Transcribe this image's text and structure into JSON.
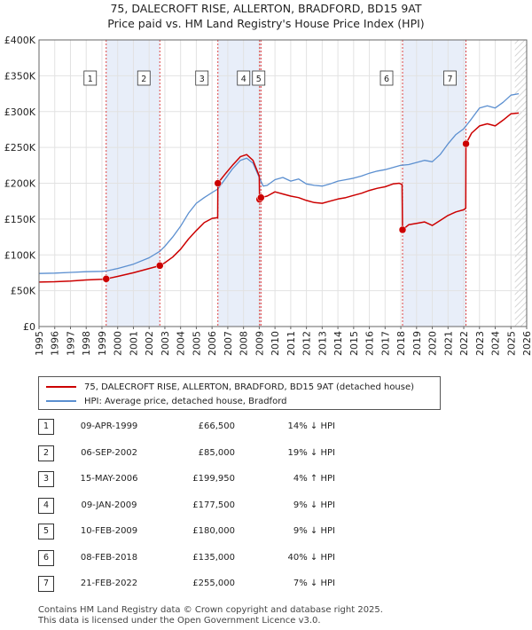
{
  "title_line1": "75, DALECROFT RISE, ALLERTON, BRADFORD, BD15 9AT",
  "title_line2": "Price paid vs. HM Land Registry's House Price Index (HPI)",
  "chart_data": {
    "type": "line",
    "title": "75, DALECROFT RISE, ALLERTON, BRADFORD, BD15 9AT — Price paid vs. HM Land Registry's House Price Index (HPI)",
    "xlim": [
      1995,
      2026
    ],
    "ylim": [
      0,
      400000
    ],
    "x_ticks": [
      "1995",
      "1996",
      "1997",
      "1998",
      "1999",
      "2000",
      "2001",
      "2002",
      "2003",
      "2004",
      "2005",
      "2006",
      "2007",
      "2008",
      "2009",
      "2010",
      "2011",
      "2012",
      "2013",
      "2014",
      "2015",
      "2016",
      "2017",
      "2018",
      "2019",
      "2020",
      "2021",
      "2022",
      "2023",
      "2024",
      "2025",
      "2026"
    ],
    "y_ticks": [
      {
        "value": 0,
        "label": "£0"
      },
      {
        "value": 50000,
        "label": "£50K"
      },
      {
        "value": 100000,
        "label": "£100K"
      },
      {
        "value": 150000,
        "label": "£150K"
      },
      {
        "value": 200000,
        "label": "£200K"
      },
      {
        "value": 250000,
        "label": "£250K"
      },
      {
        "value": 300000,
        "label": "£300K"
      },
      {
        "value": 350000,
        "label": "£350K"
      },
      {
        "value": 400000,
        "label": "£400K"
      }
    ],
    "grid": true,
    "forecast_from": 2025.25,
    "series": [
      {
        "name": "HPI: Average price, detached house, Bradford",
        "color": "#5b8fd0",
        "points": [
          [
            1995.0,
            74000
          ],
          [
            1996.0,
            74500
          ],
          [
            1997.0,
            75500
          ],
          [
            1998.0,
            76500
          ],
          [
            1999.0,
            77000
          ],
          [
            1999.27,
            77500
          ],
          [
            2000.0,
            81000
          ],
          [
            2001.0,
            87000
          ],
          [
            2002.0,
            96000
          ],
          [
            2002.68,
            105000
          ],
          [
            2003.0,
            112000
          ],
          [
            2003.5,
            125000
          ],
          [
            2004.0,
            140000
          ],
          [
            2004.5,
            158000
          ],
          [
            2005.0,
            172000
          ],
          [
            2005.5,
            180000
          ],
          [
            2006.0,
            187000
          ],
          [
            2006.37,
            192000
          ],
          [
            2006.8,
            205000
          ],
          [
            2007.3,
            220000
          ],
          [
            2007.8,
            232000
          ],
          [
            2008.2,
            235000
          ],
          [
            2008.6,
            228000
          ],
          [
            2009.0,
            208000
          ],
          [
            2009.25,
            196000
          ],
          [
            2009.5,
            197000
          ],
          [
            2010.0,
            205000
          ],
          [
            2010.5,
            208000
          ],
          [
            2011.0,
            203000
          ],
          [
            2011.5,
            206000
          ],
          [
            2012.0,
            199000
          ],
          [
            2012.5,
            197000
          ],
          [
            2013.0,
            196000
          ],
          [
            2013.5,
            199000
          ],
          [
            2014.0,
            203000
          ],
          [
            2014.5,
            205000
          ],
          [
            2015.0,
            207000
          ],
          [
            2015.5,
            210000
          ],
          [
            2016.0,
            214000
          ],
          [
            2016.5,
            217000
          ],
          [
            2017.0,
            219000
          ],
          [
            2017.5,
            222000
          ],
          [
            2018.0,
            225000
          ],
          [
            2018.5,
            226000
          ],
          [
            2019.0,
            229000
          ],
          [
            2019.5,
            232000
          ],
          [
            2020.0,
            230000
          ],
          [
            2020.5,
            240000
          ],
          [
            2021.0,
            255000
          ],
          [
            2021.5,
            268000
          ],
          [
            2022.0,
            276000
          ],
          [
            2022.5,
            290000
          ],
          [
            2023.0,
            305000
          ],
          [
            2023.5,
            308000
          ],
          [
            2024.0,
            305000
          ],
          [
            2024.5,
            313000
          ],
          [
            2025.0,
            323000
          ],
          [
            2025.5,
            325000
          ]
        ]
      },
      {
        "name": "75, DALECROFT RISE, ALLERTON, BRADFORD, BD15 9AT (detached house)",
        "color": "#cc0000",
        "points": [
          [
            1995.0,
            62000
          ],
          [
            1996.0,
            62500
          ],
          [
            1997.0,
            63500
          ],
          [
            1998.0,
            65000
          ],
          [
            1999.0,
            66000
          ],
          [
            1999.27,
            66500
          ],
          [
            2000.0,
            70000
          ],
          [
            2001.0,
            75000
          ],
          [
            2002.0,
            81000
          ],
          [
            2002.68,
            85000
          ],
          [
            2003.0,
            89000
          ],
          [
            2003.5,
            97000
          ],
          [
            2004.0,
            108000
          ],
          [
            2004.5,
            122000
          ],
          [
            2005.0,
            134000
          ],
          [
            2005.5,
            145000
          ],
          [
            2006.0,
            151000
          ],
          [
            2006.36,
            152000
          ],
          [
            2006.37,
            199950
          ],
          [
            2006.8,
            212000
          ],
          [
            2007.3,
            225000
          ],
          [
            2007.8,
            237000
          ],
          [
            2008.2,
            240000
          ],
          [
            2008.6,
            232000
          ],
          [
            2009.0,
            210000
          ],
          [
            2009.02,
            177500
          ],
          [
            2009.11,
            180000
          ],
          [
            2009.5,
            182000
          ],
          [
            2010.0,
            188000
          ],
          [
            2010.5,
            185000
          ],
          [
            2011.0,
            182000
          ],
          [
            2011.5,
            180000
          ],
          [
            2012.0,
            176000
          ],
          [
            2012.5,
            173000
          ],
          [
            2013.0,
            172000
          ],
          [
            2013.5,
            175000
          ],
          [
            2014.0,
            178000
          ],
          [
            2014.5,
            180000
          ],
          [
            2015.0,
            183000
          ],
          [
            2015.5,
            186000
          ],
          [
            2016.0,
            190000
          ],
          [
            2016.5,
            193000
          ],
          [
            2017.0,
            195000
          ],
          [
            2017.5,
            199000
          ],
          [
            2017.9,
            200000
          ],
          [
            2018.08,
            198000
          ],
          [
            2018.11,
            135000
          ],
          [
            2018.5,
            142000
          ],
          [
            2019.0,
            144000
          ],
          [
            2019.5,
            146000
          ],
          [
            2020.0,
            141000
          ],
          [
            2020.5,
            148000
          ],
          [
            2021.0,
            155000
          ],
          [
            2021.5,
            160000
          ],
          [
            2022.0,
            163000
          ],
          [
            2022.13,
            165000
          ],
          [
            2022.14,
            255000
          ],
          [
            2022.5,
            270000
          ],
          [
            2023.0,
            280000
          ],
          [
            2023.5,
            283000
          ],
          [
            2024.0,
            280000
          ],
          [
            2024.5,
            288000
          ],
          [
            2025.0,
            297000
          ],
          [
            2025.5,
            298000
          ]
        ]
      }
    ],
    "markers": [
      {
        "n": "1",
        "x": 1999.27,
        "y": 66500
      },
      {
        "n": "2",
        "x": 2002.68,
        "y": 85000
      },
      {
        "n": "3",
        "x": 2006.37,
        "y": 199950
      },
      {
        "n": "4",
        "x": 2009.02,
        "y": 177500
      },
      {
        "n": "5",
        "x": 2009.11,
        "y": 180000
      },
      {
        "n": "6",
        "x": 2018.11,
        "y": 135000
      },
      {
        "n": "7",
        "x": 2022.14,
        "y": 255000
      }
    ],
    "shaded_ranges": [
      [
        1999.27,
        2002.68
      ],
      [
        2006.37,
        2009.11
      ],
      [
        2018.11,
        2022.14
      ]
    ]
  },
  "legend": {
    "property_label": "75, DALECROFT RISE, ALLERTON, BRADFORD, BD15 9AT (detached house)",
    "hpi_label": "HPI: Average price, detached house, Bradford",
    "property_color": "#cc0000",
    "hpi_color": "#5b8fd0"
  },
  "sales": [
    {
      "n": "1",
      "date": "09-APR-1999",
      "price": "£66,500",
      "hpi": "14% ↓ HPI"
    },
    {
      "n": "2",
      "date": "06-SEP-2002",
      "price": "£85,000",
      "hpi": "19% ↓ HPI"
    },
    {
      "n": "3",
      "date": "15-MAY-2006",
      "price": "£199,950",
      "hpi": "4% ↑ HPI"
    },
    {
      "n": "4",
      "date": "09-JAN-2009",
      "price": "£177,500",
      "hpi": "9% ↓ HPI"
    },
    {
      "n": "5",
      "date": "10-FEB-2009",
      "price": "£180,000",
      "hpi": "9% ↓ HPI"
    },
    {
      "n": "6",
      "date": "08-FEB-2018",
      "price": "£135,000",
      "hpi": "40% ↓ HPI"
    },
    {
      "n": "7",
      "date": "21-FEB-2022",
      "price": "£255,000",
      "hpi": "7% ↓ HPI"
    }
  ],
  "footer_line1": "Contains HM Land Registry data © Crown copyright and database right 2025.",
  "footer_line2": "This data is licensed under the Open Government Licence v3.0."
}
